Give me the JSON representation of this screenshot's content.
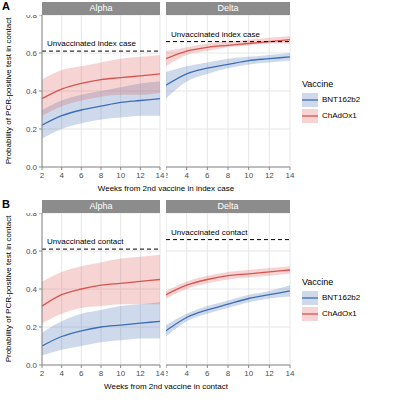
{
  "chart_data": [
    {
      "type": "line",
      "panel_label": "A",
      "x_label": "Weeks from 2nd vaccine in index case",
      "y_label": "Probability of PCR-positive test in contact",
      "legend_title": "Vaccine",
      "grid": true,
      "x": [
        2,
        4,
        6,
        8,
        10,
        12,
        14
      ],
      "xlim": [
        2,
        14
      ],
      "xticks": [
        2,
        4,
        6,
        8,
        10,
        12,
        14
      ],
      "ylim": [
        0,
        0.8
      ],
      "yticks": [
        {
          "value": 0,
          "label": "0.0"
        },
        0.2,
        0.4,
        0.6,
        0.8
      ],
      "facets": [
        {
          "title": "Alpha",
          "reference": {
            "value": 0.61,
            "label": "Unvaccinated index case"
          },
          "series": [
            {
              "name": "BNT162b2",
              "color": "#3c6db5",
              "values": [
                0.22,
                0.27,
                0.3,
                0.32,
                0.34,
                0.35,
                0.36
              ],
              "lower": [
                0.15,
                0.2,
                0.23,
                0.25,
                0.26,
                0.27,
                0.27
              ],
              "upper": [
                0.3,
                0.35,
                0.38,
                0.4,
                0.42,
                0.44,
                0.45
              ]
            },
            {
              "name": "ChAdOx1",
              "color": "#d9534f",
              "values": [
                0.36,
                0.41,
                0.44,
                0.46,
                0.47,
                0.48,
                0.49
              ],
              "lower": [
                0.27,
                0.32,
                0.35,
                0.37,
                0.38,
                0.38,
                0.39
              ],
              "upper": [
                0.46,
                0.51,
                0.53,
                0.55,
                0.57,
                0.58,
                0.59
              ]
            }
          ]
        },
        {
          "title": "Delta",
          "reference": {
            "value": 0.66,
            "label": "Unvaccinated index case"
          },
          "series": [
            {
              "name": "BNT162b2",
              "color": "#3c6db5",
              "values": [
                0.43,
                0.49,
                0.52,
                0.54,
                0.56,
                0.57,
                0.58
              ],
              "lower": [
                0.36,
                0.45,
                0.49,
                0.52,
                0.54,
                0.55,
                0.56
              ],
              "upper": [
                0.5,
                0.53,
                0.55,
                0.57,
                0.58,
                0.59,
                0.6
              ]
            },
            {
              "name": "ChAdOx1",
              "color": "#d9534f",
              "values": [
                0.57,
                0.61,
                0.63,
                0.64,
                0.65,
                0.66,
                0.67
              ],
              "lower": [
                0.53,
                0.59,
                0.61,
                0.63,
                0.64,
                0.65,
                0.65
              ],
              "upper": [
                0.61,
                0.63,
                0.65,
                0.66,
                0.67,
                0.68,
                0.69
              ]
            }
          ]
        }
      ]
    },
    {
      "type": "line",
      "panel_label": "B",
      "x_label": "Weeks from 2nd vaccine in contact",
      "y_label": "Probability of PCR-positive test in contact",
      "legend_title": "Vaccine",
      "grid": true,
      "x": [
        2,
        4,
        6,
        8,
        10,
        12,
        14
      ],
      "xlim": [
        2,
        14
      ],
      "xticks": [
        2,
        4,
        6,
        8,
        10,
        12,
        14
      ],
      "ylim": [
        0,
        0.8
      ],
      "yticks": [
        {
          "value": 0,
          "label": "0.0"
        },
        0.2,
        0.4,
        0.6,
        0.8
      ],
      "facets": [
        {
          "title": "Alpha",
          "reference": {
            "value": 0.61,
            "label": "Unvaccinated contact"
          },
          "series": [
            {
              "name": "BNT162b2",
              "color": "#3c6db5",
              "values": [
                0.1,
                0.15,
                0.18,
                0.2,
                0.21,
                0.22,
                0.23
              ],
              "lower": [
                0.05,
                0.08,
                0.1,
                0.12,
                0.13,
                0.14,
                0.14
              ],
              "upper": [
                0.17,
                0.23,
                0.27,
                0.29,
                0.31,
                0.32,
                0.33
              ]
            },
            {
              "name": "ChAdOx1",
              "color": "#d9534f",
              "values": [
                0.31,
                0.37,
                0.4,
                0.42,
                0.43,
                0.44,
                0.45
              ],
              "lower": [
                0.22,
                0.27,
                0.3,
                0.31,
                0.32,
                0.32,
                0.32
              ],
              "upper": [
                0.44,
                0.49,
                0.52,
                0.54,
                0.56,
                0.57,
                0.58
              ]
            }
          ]
        },
        {
          "title": "Delta",
          "reference": {
            "value": 0.66,
            "label": "Unvaccinated contact"
          },
          "series": [
            {
              "name": "BNT162b2",
              "color": "#3c6db5",
              "values": [
                0.18,
                0.25,
                0.29,
                0.32,
                0.35,
                0.37,
                0.39
              ],
              "lower": [
                0.15,
                0.23,
                0.27,
                0.3,
                0.33,
                0.35,
                0.36
              ],
              "upper": [
                0.21,
                0.27,
                0.31,
                0.34,
                0.37,
                0.39,
                0.42
              ]
            },
            {
              "name": "ChAdOx1",
              "color": "#d9534f",
              "values": [
                0.37,
                0.42,
                0.45,
                0.47,
                0.48,
                0.49,
                0.5
              ],
              "lower": [
                0.35,
                0.4,
                0.43,
                0.45,
                0.46,
                0.47,
                0.48
              ],
              "upper": [
                0.39,
                0.44,
                0.47,
                0.49,
                0.5,
                0.51,
                0.52
              ]
            }
          ]
        }
      ]
    }
  ]
}
